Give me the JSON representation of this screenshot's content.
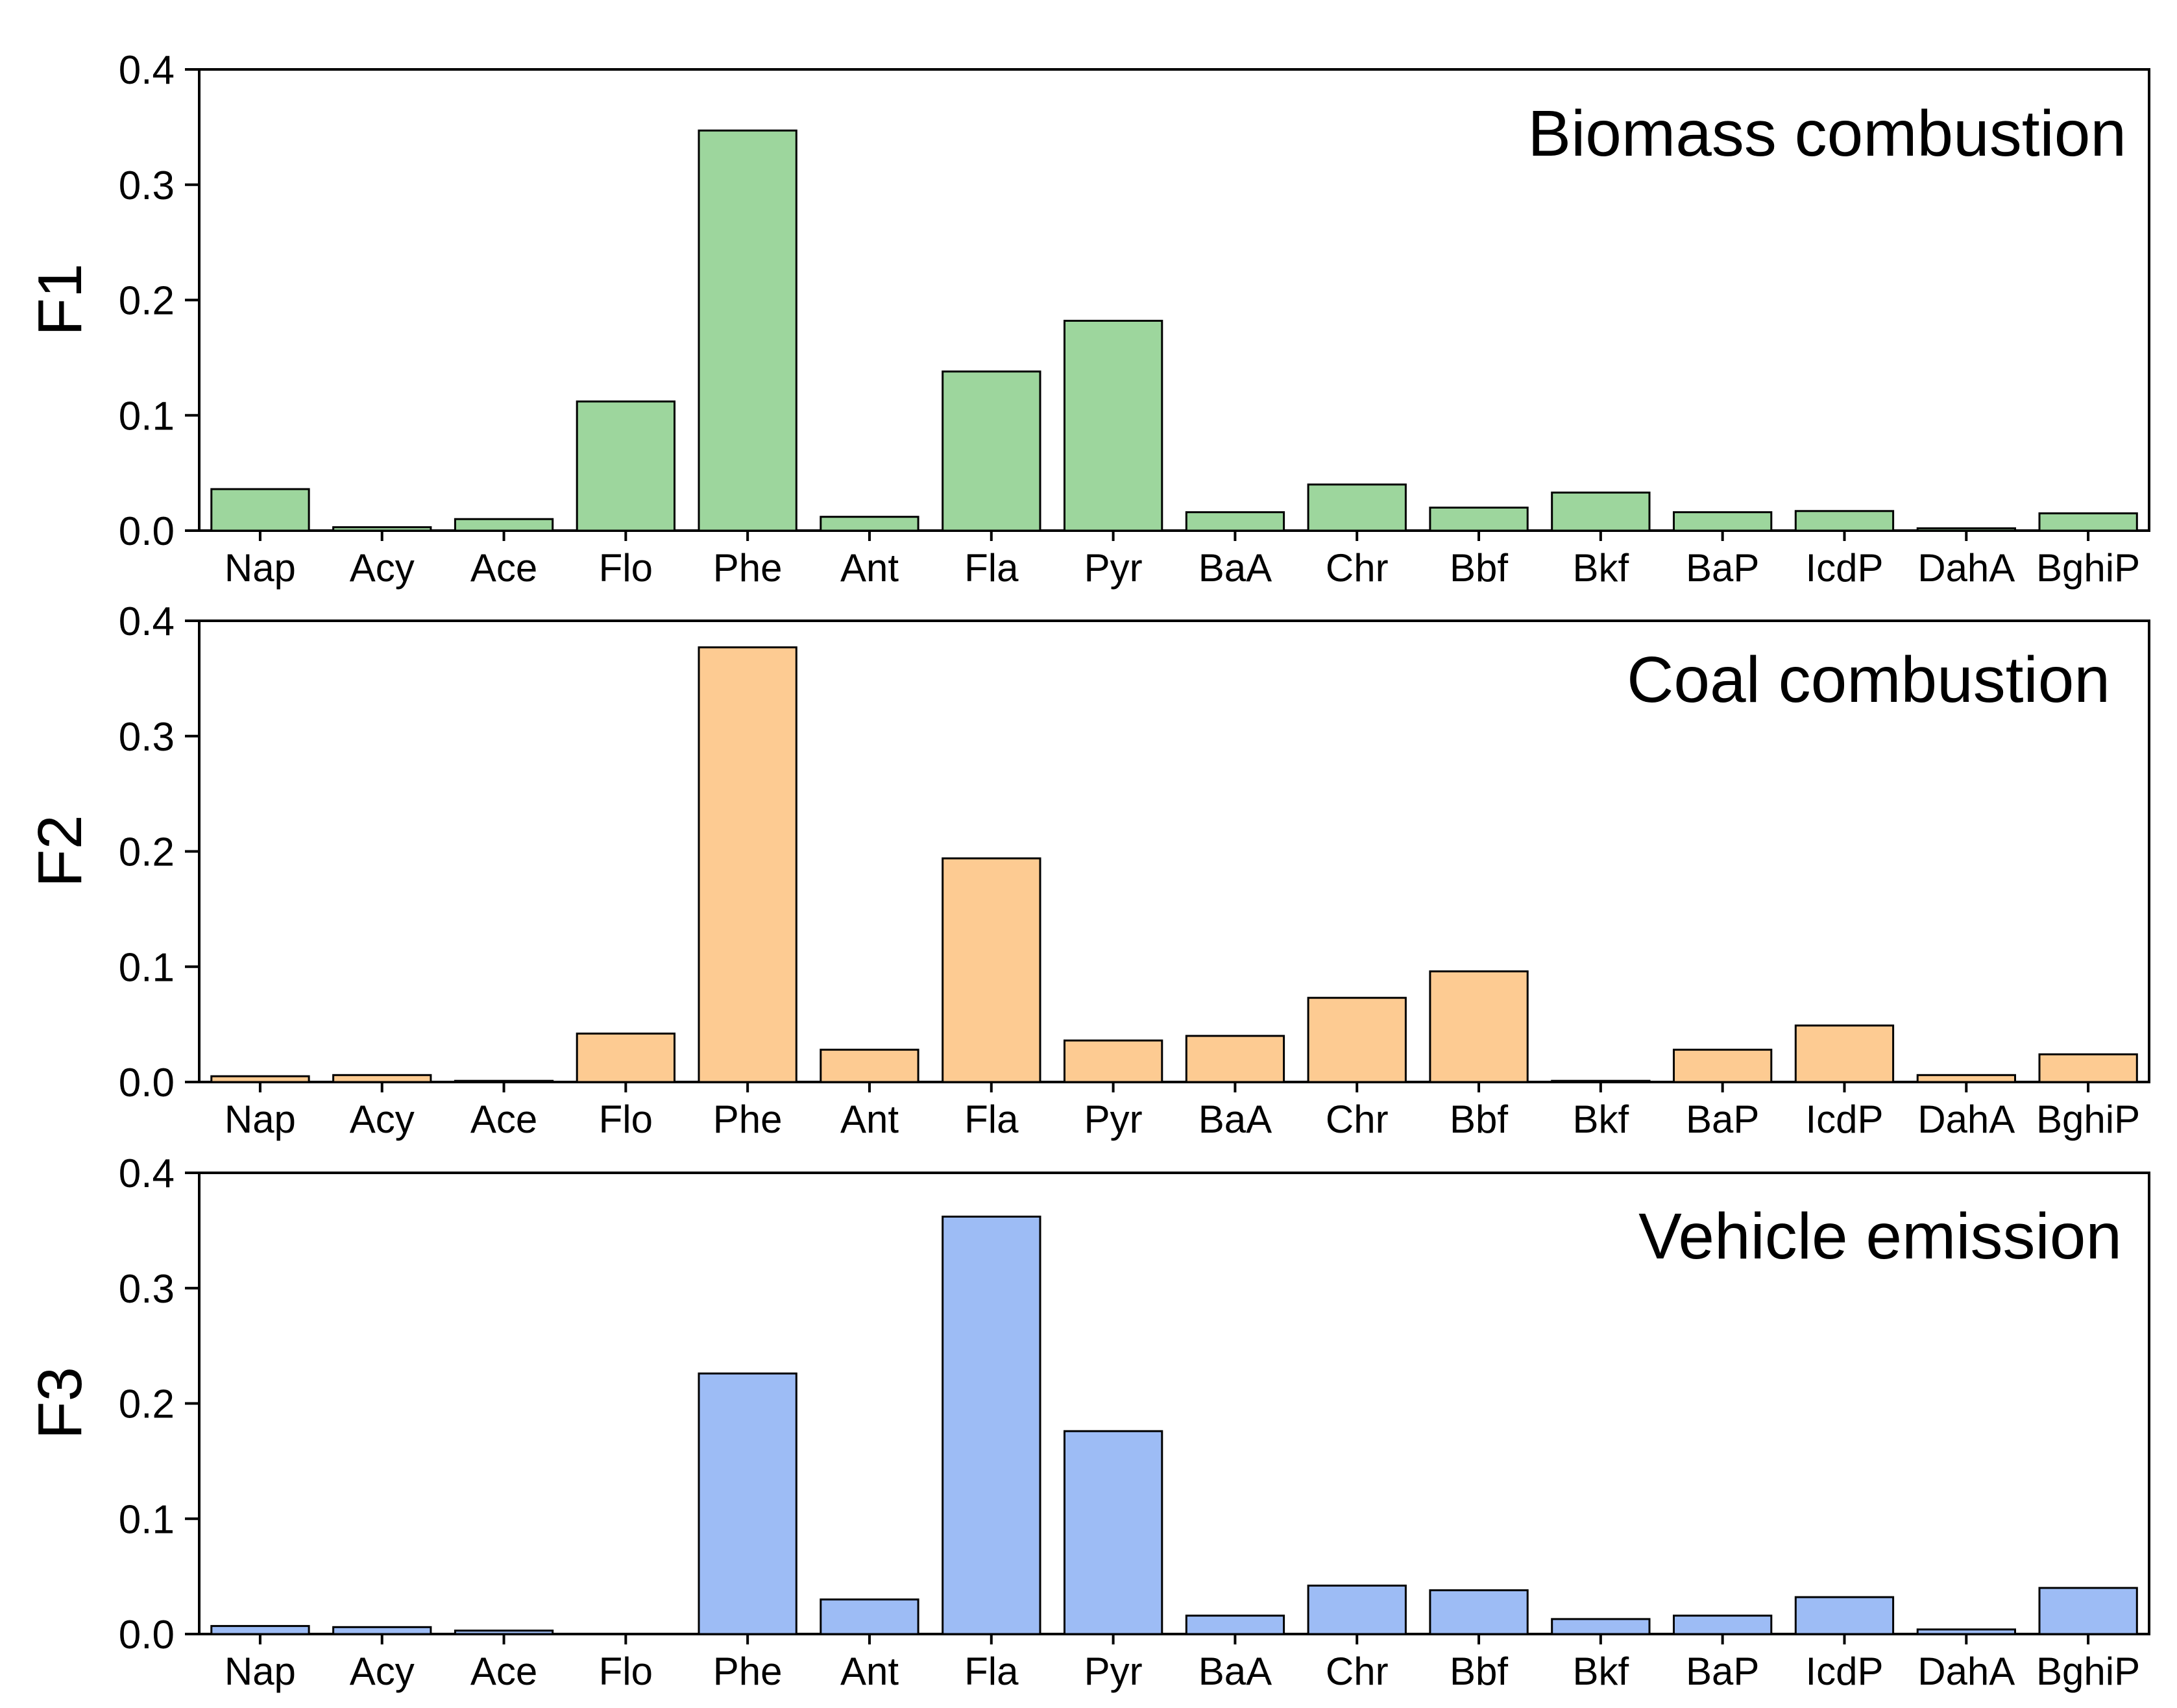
{
  "chart_data": [
    {
      "type": "bar",
      "ylabel": "F1",
      "title": "Biomass combustion",
      "color": "#9dd69d",
      "categories": [
        "Nap",
        "Acy",
        "Ace",
        "Flo",
        "Phe",
        "Ant",
        "Fla",
        "Pyr",
        "BaA",
        "Chr",
        "Bbf",
        "Bkf",
        "BaP",
        "IcdP",
        "DahA",
        "BghiP"
      ],
      "values": [
        0.036,
        0.003,
        0.01,
        0.112,
        0.347,
        0.012,
        0.138,
        0.182,
        0.016,
        0.04,
        0.02,
        0.033,
        0.016,
        0.017,
        0.002,
        0.015
      ],
      "yticks": [
        "0.0",
        "0.1",
        "0.2",
        "0.3",
        "0.4"
      ],
      "ylim": [
        0,
        0.4
      ],
      "grid": false
    },
    {
      "type": "bar",
      "ylabel": "F2",
      "title": "Coal combustion",
      "color": "#fdcb92",
      "categories": [
        "Nap",
        "Acy",
        "Ace",
        "Flo",
        "Phe",
        "Ant",
        "Fla",
        "Pyr",
        "BaA",
        "Chr",
        "Bbf",
        "Bkf",
        "BaP",
        "IcdP",
        "DahA",
        "BghiP"
      ],
      "values": [
        0.005,
        0.006,
        0.001,
        0.042,
        0.377,
        0.028,
        0.194,
        0.036,
        0.04,
        0.073,
        0.096,
        0.001,
        0.028,
        0.049,
        0.006,
        0.024
      ],
      "yticks": [
        "0.0",
        "0.1",
        "0.2",
        "0.3",
        "0.4"
      ],
      "ylim": [
        0,
        0.4
      ],
      "grid": false
    },
    {
      "type": "bar",
      "ylabel": "F3",
      "title": "Vehicle emission",
      "color": "#9dbcf5",
      "categories": [
        "Nap",
        "Acy",
        "Ace",
        "Flo",
        "Phe",
        "Ant",
        "Fla",
        "Pyr",
        "BaA",
        "Chr",
        "Bbf",
        "Bkf",
        "BaP",
        "IcdP",
        "DahA",
        "BghiP"
      ],
      "values": [
        0.007,
        0.006,
        0.003,
        0.0,
        0.226,
        0.03,
        0.362,
        0.176,
        0.016,
        0.042,
        0.038,
        0.013,
        0.016,
        0.032,
        0.004,
        0.04
      ],
      "yticks": [
        "0.0",
        "0.1",
        "0.2",
        "0.3",
        "0.4"
      ],
      "ylim": [
        0,
        0.4
      ],
      "grid": false
    }
  ]
}
